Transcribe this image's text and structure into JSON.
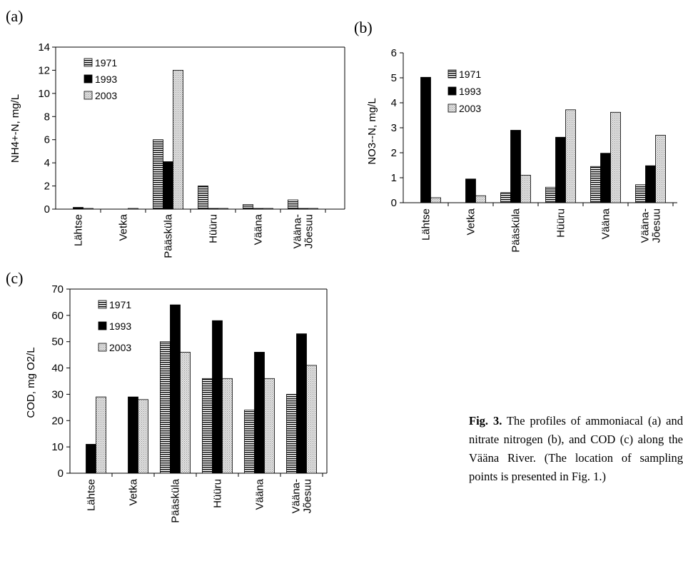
{
  "charts": [
    {
      "panel": "(a)",
      "type": "bar",
      "ylabel": "NH4+-N, mg/L",
      "ylim": [
        0,
        14
      ],
      "yticks": [
        0,
        2,
        4,
        6,
        8,
        10,
        12,
        14
      ],
      "categories": [
        "Lähtse",
        "Vetka",
        "Pääsküla",
        "Hüüru",
        "Vääna",
        "Vääna-\nJõesuu"
      ],
      "series": [
        {
          "name": "1971",
          "values": [
            0,
            0,
            6.0,
            2.0,
            0.4,
            0.8
          ]
        },
        {
          "name": "1993",
          "values": [
            0.15,
            0,
            4.1,
            0.05,
            0.05,
            0.05
          ]
        },
        {
          "name": "2003",
          "values": [
            0.05,
            0.05,
            12.0,
            0.05,
            0.05,
            0.05
          ]
        }
      ],
      "legend": "top-left"
    },
    {
      "panel": "(b)",
      "type": "bar",
      "ylabel": "NO3--N, mg/L",
      "ylim": [
        0,
        6
      ],
      "yticks": [
        0,
        1,
        2,
        3,
        4,
        5,
        6
      ],
      "categories": [
        "Lähtse",
        "Vetka",
        "Pääsküla",
        "Hüüru",
        "Vääna",
        "Vääna-\nJõesuu"
      ],
      "series": [
        {
          "name": "1971",
          "values": [
            0,
            0,
            0.4,
            0.62,
            1.45,
            0.72
          ]
        },
        {
          "name": "1993",
          "values": [
            5.02,
            0.95,
            2.9,
            2.62,
            1.98,
            1.48
          ]
        },
        {
          "name": "2003",
          "values": [
            0.2,
            0.28,
            1.1,
            3.72,
            3.62,
            2.7
          ]
        }
      ],
      "legend": "top-left"
    },
    {
      "panel": "(c)",
      "type": "bar",
      "ylabel": "COD, mg O2/L",
      "ylim": [
        0,
        70
      ],
      "yticks": [
        0,
        10,
        20,
        30,
        40,
        50,
        60,
        70
      ],
      "categories": [
        "Lähtse",
        "Vetka",
        "Pääsküla",
        "Hüüru",
        "Vääna",
        "Vääna-\nJõesuu"
      ],
      "series": [
        {
          "name": "1971",
          "values": [
            0,
            0,
            50,
            36,
            24,
            30
          ]
        },
        {
          "name": "1993",
          "values": [
            11,
            29,
            64,
            58,
            46,
            53
          ]
        },
        {
          "name": "2003",
          "values": [
            29,
            28,
            46,
            36,
            36,
            41
          ]
        }
      ],
      "legend": "top-left"
    }
  ],
  "caption": {
    "bold": "Fig. 3.",
    "text": " The profiles of ammoniacal (a) and nitrate nitrogen (b), and COD (c) along the Vääna River. (The location of sampling points is presented in Fig. 1.)"
  }
}
